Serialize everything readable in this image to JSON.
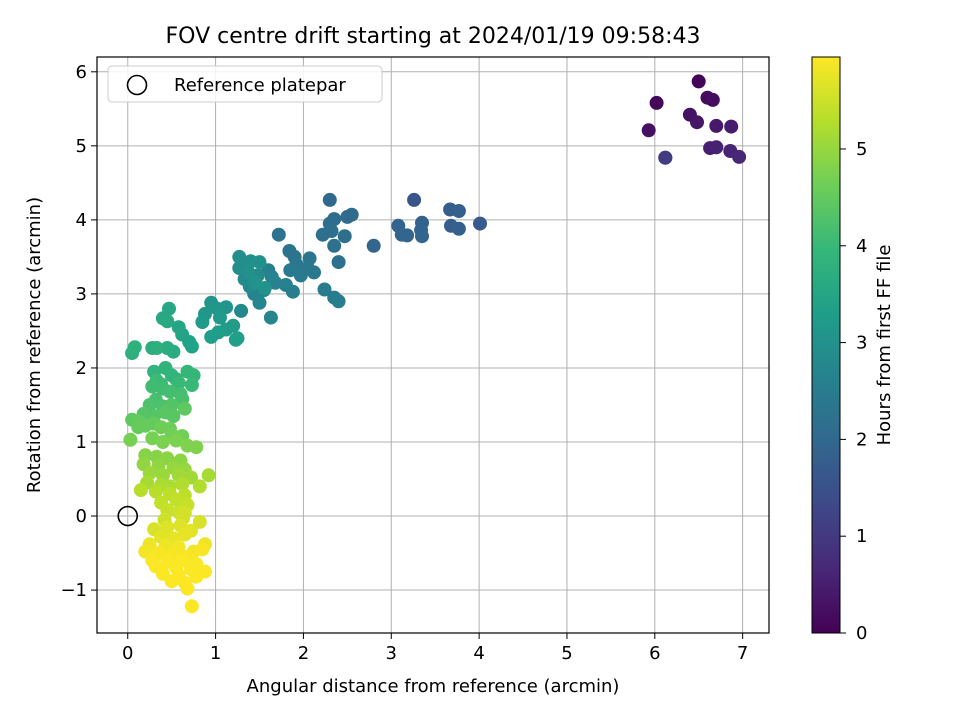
{
  "chart_data": {
    "type": "scatter",
    "title": "FOV centre drift starting at 2024/01/19 09:58:43",
    "xlabel": "Angular distance from reference (arcmin)",
    "ylabel": "Rotation from reference (arcmin)",
    "xlim": [
      -0.35,
      7.3
    ],
    "ylim": [
      -1.58,
      6.2
    ],
    "xticks": [
      0,
      1,
      2,
      3,
      4,
      5,
      6,
      7
    ],
    "yticks": [
      -1,
      0,
      1,
      2,
      3,
      4,
      5,
      6
    ],
    "xtick_labels": [
      "0",
      "1",
      "2",
      "3",
      "4",
      "5",
      "6",
      "7"
    ],
    "ytick_labels": [
      "−1",
      "0",
      "1",
      "2",
      "3",
      "4",
      "5",
      "6"
    ],
    "grid": true,
    "legend": {
      "position": "upper-left",
      "entries": [
        {
          "label": "Reference platepar",
          "marker": "open-circle"
        }
      ]
    },
    "reference_point": {
      "x": 0,
      "y": 0
    },
    "colorbar": {
      "label": "Hours from first FF file",
      "range": [
        0,
        5.95
      ],
      "ticks": [
        0,
        1,
        2,
        3,
        4,
        5
      ],
      "tick_labels": [
        "0",
        "1",
        "2",
        "3",
        "4",
        "5"
      ],
      "colormap": "viridis",
      "color_stops": [
        "#440154",
        "#482878",
        "#3e4989",
        "#31688e",
        "#26828e",
        "#1f9e89",
        "#35b779",
        "#6ece58",
        "#b5de2b",
        "#fde725"
      ]
    },
    "point_encoding": [
      "x",
      "y",
      "hours"
    ],
    "points": [
      [
        6.5,
        5.87,
        0.05
      ],
      [
        6.02,
        5.58,
        0.1
      ],
      [
        6.6,
        5.65,
        0.15
      ],
      [
        6.66,
        5.62,
        0.2
      ],
      [
        5.93,
        5.21,
        0.25
      ],
      [
        6.4,
        5.42,
        0.3
      ],
      [
        6.48,
        5.32,
        0.35
      ],
      [
        6.7,
        5.27,
        0.4
      ],
      [
        6.87,
        5.26,
        0.45
      ],
      [
        6.63,
        4.97,
        0.5
      ],
      [
        6.7,
        4.98,
        0.55
      ],
      [
        6.86,
        4.93,
        0.6
      ],
      [
        6.96,
        4.85,
        0.65
      ],
      [
        6.12,
        4.84,
        0.85
      ],
      [
        6.12,
        4.84,
        1.05
      ],
      [
        3.26,
        4.27,
        1.6
      ],
      [
        3.67,
        4.14,
        1.75
      ],
      [
        3.77,
        4.12,
        1.8
      ],
      [
        4.01,
        3.95,
        1.7
      ],
      [
        3.68,
        3.92,
        1.75
      ],
      [
        3.77,
        3.88,
        1.8
      ],
      [
        3.35,
        3.96,
        1.85
      ],
      [
        3.08,
        3.92,
        1.9
      ],
      [
        3.12,
        3.8,
        1.9
      ],
      [
        3.18,
        3.79,
        1.95
      ],
      [
        3.34,
        3.86,
        1.9
      ],
      [
        3.35,
        3.78,
        1.95
      ],
      [
        2.8,
        3.65,
        1.95
      ],
      [
        2.3,
        4.27,
        2.0
      ],
      [
        2.55,
        4.07,
        2.05
      ],
      [
        2.5,
        4.04,
        2.05
      ],
      [
        2.35,
        4.01,
        2.1
      ],
      [
        2.3,
        3.95,
        2.1
      ],
      [
        2.22,
        3.8,
        2.15
      ],
      [
        2.32,
        3.85,
        2.15
      ],
      [
        2.47,
        3.78,
        2.15
      ],
      [
        2.35,
        3.65,
        2.2
      ],
      [
        2.4,
        3.43,
        2.2
      ],
      [
        1.72,
        3.8,
        2.25
      ],
      [
        1.84,
        3.58,
        2.3
      ],
      [
        1.9,
        3.5,
        2.3
      ],
      [
        2.07,
        3.48,
        2.35
      ],
      [
        1.92,
        3.4,
        2.35
      ],
      [
        2.05,
        3.35,
        2.4
      ],
      [
        2.12,
        3.29,
        2.4
      ],
      [
        1.85,
        3.32,
        2.45
      ],
      [
        1.97,
        3.25,
        2.45
      ],
      [
        2.24,
        3.06,
        2.5
      ],
      [
        2.35,
        2.95,
        2.5
      ],
      [
        2.4,
        2.9,
        2.55
      ],
      [
        1.88,
        3.03,
        2.55
      ],
      [
        1.8,
        3.12,
        2.6
      ],
      [
        1.6,
        3.32,
        2.6
      ],
      [
        1.64,
        3.23,
        2.65
      ],
      [
        1.68,
        3.15,
        2.65
      ],
      [
        1.55,
        3.05,
        2.7
      ],
      [
        1.44,
        3.0,
        2.7
      ],
      [
        1.5,
        2.88,
        2.75
      ],
      [
        1.63,
        2.68,
        2.75
      ],
      [
        1.29,
        2.77,
        2.8
      ],
      [
        1.39,
        3.1,
        2.8
      ],
      [
        1.33,
        3.2,
        2.85
      ],
      [
        1.48,
        3.25,
        2.85
      ],
      [
        1.27,
        3.35,
        2.9
      ],
      [
        1.35,
        3.4,
        2.9
      ],
      [
        1.27,
        3.5,
        2.95
      ],
      [
        1.4,
        3.44,
        2.95
      ],
      [
        1.5,
        3.43,
        3.0
      ],
      [
        1.37,
        3.3,
        3.0
      ],
      [
        1.45,
        3.15,
        3.05
      ],
      [
        1.56,
        3.08,
        3.05
      ],
      [
        0.95,
        2.88,
        3.1
      ],
      [
        1.12,
        2.82,
        3.1
      ],
      [
        1.02,
        2.8,
        3.15
      ],
      [
        0.88,
        2.73,
        3.15
      ],
      [
        1.05,
        2.68,
        3.2
      ],
      [
        0.85,
        2.62,
        3.2
      ],
      [
        1.2,
        2.57,
        3.25
      ],
      [
        1.12,
        2.52,
        3.25
      ],
      [
        1.03,
        2.48,
        3.3
      ],
      [
        0.95,
        2.42,
        3.3
      ],
      [
        1.25,
        2.4,
        3.35
      ],
      [
        1.23,
        2.38,
        3.35
      ],
      [
        0.73,
        2.29,
        3.4
      ],
      [
        0.7,
        2.35,
        3.4
      ],
      [
        0.62,
        2.45,
        3.45
      ],
      [
        0.58,
        2.55,
        3.5
      ],
      [
        0.47,
        2.8,
        3.55
      ],
      [
        0.4,
        2.67,
        3.55
      ],
      [
        0.45,
        2.63,
        3.6
      ],
      [
        0.52,
        2.22,
        3.65
      ],
      [
        0.45,
        2.27,
        3.7
      ],
      [
        0.28,
        2.27,
        3.7
      ],
      [
        0.33,
        2.27,
        3.75
      ],
      [
        0.05,
        2.2,
        3.75
      ],
      [
        0.08,
        2.28,
        3.8
      ],
      [
        0.43,
        2.0,
        3.85
      ],
      [
        0.3,
        1.95,
        3.85
      ],
      [
        0.5,
        1.9,
        3.9
      ],
      [
        0.55,
        1.85,
        3.9
      ],
      [
        0.68,
        1.95,
        3.95
      ],
      [
        0.75,
        1.9,
        3.95
      ],
      [
        0.58,
        1.8,
        4.0
      ],
      [
        0.73,
        1.77,
        4.0
      ],
      [
        0.33,
        1.83,
        4.05
      ],
      [
        0.38,
        1.78,
        4.05
      ],
      [
        0.28,
        1.75,
        4.1
      ],
      [
        0.4,
        1.72,
        4.1
      ],
      [
        0.48,
        1.68,
        4.15
      ],
      [
        0.6,
        1.65,
        4.15
      ],
      [
        0.32,
        1.57,
        4.2
      ],
      [
        0.62,
        1.58,
        4.2
      ],
      [
        0.25,
        1.5,
        4.25
      ],
      [
        0.4,
        1.48,
        4.25
      ],
      [
        0.5,
        1.5,
        4.3
      ],
      [
        0.18,
        1.38,
        4.35
      ],
      [
        0.3,
        1.35,
        4.35
      ],
      [
        0.43,
        1.4,
        4.4
      ],
      [
        0.52,
        1.35,
        4.4
      ],
      [
        0.65,
        1.45,
        4.45
      ],
      [
        0.05,
        1.3,
        4.45
      ],
      [
        0.12,
        1.28,
        4.5
      ],
      [
        0.3,
        1.25,
        4.5
      ],
      [
        0.12,
        1.2,
        4.55
      ],
      [
        0.2,
        1.22,
        4.55
      ],
      [
        0.38,
        1.2,
        4.6
      ],
      [
        0.48,
        1.18,
        4.6
      ],
      [
        0.5,
        1.1,
        4.65
      ],
      [
        0.62,
        1.08,
        4.65
      ],
      [
        0.03,
        1.03,
        4.7
      ],
      [
        0.28,
        1.05,
        4.7
      ],
      [
        0.4,
        1.0,
        4.75
      ],
      [
        0.55,
        1.02,
        4.75
      ],
      [
        0.68,
        0.95,
        4.8
      ],
      [
        0.78,
        0.93,
        4.8
      ],
      [
        0.2,
        0.82,
        4.85
      ],
      [
        0.33,
        0.8,
        4.85
      ],
      [
        0.45,
        0.78,
        4.9
      ],
      [
        0.6,
        0.75,
        4.9
      ],
      [
        0.18,
        0.7,
        4.95
      ],
      [
        0.35,
        0.68,
        4.95
      ],
      [
        0.52,
        0.65,
        5.0
      ],
      [
        0.65,
        0.63,
        5.0
      ],
      [
        0.25,
        0.58,
        5.05
      ],
      [
        0.4,
        0.55,
        5.05
      ],
      [
        0.58,
        0.55,
        5.1
      ],
      [
        0.72,
        0.52,
        5.1
      ],
      [
        0.92,
        0.55,
        5.15
      ],
      [
        0.22,
        0.45,
        5.15
      ],
      [
        0.38,
        0.42,
        5.2
      ],
      [
        0.48,
        0.4,
        5.2
      ],
      [
        0.62,
        0.43,
        5.25
      ],
      [
        0.82,
        0.4,
        5.25
      ],
      [
        0.15,
        0.35,
        5.3
      ],
      [
        0.32,
        0.33,
        5.3
      ],
      [
        0.48,
        0.3,
        5.35
      ],
      [
        0.65,
        0.28,
        5.35
      ],
      [
        0.55,
        0.22,
        5.4
      ],
      [
        0.38,
        0.18,
        5.4
      ],
      [
        0.68,
        0.15,
        5.45
      ],
      [
        0.45,
        0.08,
        5.45
      ],
      [
        0.58,
        0.05,
        5.5
      ],
      [
        0.42,
        -0.05,
        5.5
      ],
      [
        0.63,
        -0.03,
        5.55
      ],
      [
        0.65,
        0.04,
        5.55
      ],
      [
        0.82,
        -0.08,
        5.6
      ],
      [
        0.3,
        -0.18,
        5.6
      ],
      [
        0.45,
        -0.15,
        5.65
      ],
      [
        0.6,
        -0.13,
        5.65
      ],
      [
        0.72,
        -0.2,
        5.7
      ],
      [
        0.38,
        -0.28,
        5.7
      ],
      [
        0.52,
        -0.3,
        5.75
      ],
      [
        0.65,
        -0.25,
        5.75
      ],
      [
        0.88,
        -0.38,
        5.8
      ],
      [
        0.25,
        -0.38,
        5.8
      ],
      [
        0.43,
        -0.4,
        5.8
      ],
      [
        0.58,
        -0.42,
        5.85
      ],
      [
        0.75,
        -0.48,
        5.85
      ],
      [
        0.2,
        -0.48,
        5.85
      ],
      [
        0.35,
        -0.5,
        5.9
      ],
      [
        0.5,
        -0.52,
        5.9
      ],
      [
        0.68,
        -0.55,
        5.9
      ],
      [
        0.85,
        -0.45,
        5.9
      ],
      [
        0.28,
        -0.6,
        5.92
      ],
      [
        0.45,
        -0.62,
        5.92
      ],
      [
        0.62,
        -0.6,
        5.92
      ],
      [
        0.78,
        -0.65,
        5.92
      ],
      [
        0.32,
        -0.68,
        5.93
      ],
      [
        0.55,
        -0.7,
        5.93
      ],
      [
        0.72,
        -0.72,
        5.93
      ],
      [
        0.88,
        -0.75,
        5.93
      ],
      [
        0.4,
        -0.78,
        5.94
      ],
      [
        0.58,
        -0.8,
        5.94
      ],
      [
        0.78,
        -0.82,
        5.94
      ],
      [
        0.5,
        -0.88,
        5.94
      ],
      [
        0.65,
        -0.9,
        5.95
      ],
      [
        0.68,
        -0.98,
        5.95
      ],
      [
        0.73,
        -1.22,
        5.95
      ]
    ]
  }
}
